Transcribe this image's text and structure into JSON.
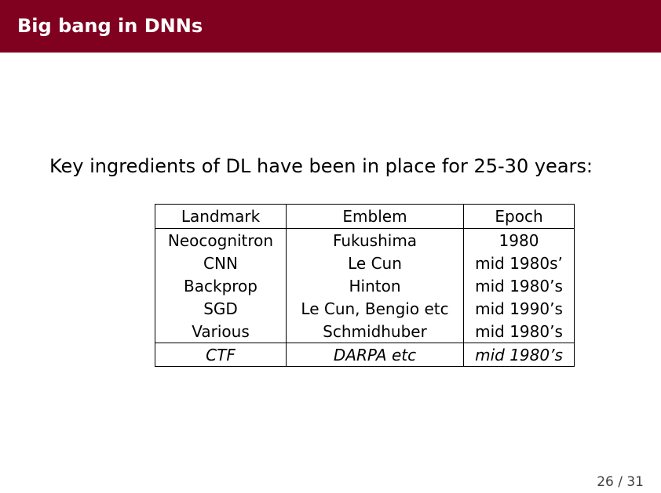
{
  "slide": {
    "title": "Big bang in DNNs",
    "intro": "Key ingredients of DL have been in place for 25-30 years:"
  },
  "table": {
    "headers": [
      "Landmark",
      "Emblem",
      "Epoch"
    ],
    "rows": [
      [
        "Neocognitron",
        "Fukushima",
        "1980"
      ],
      [
        "CNN",
        "Le Cun",
        "mid 1980s’"
      ],
      [
        "Backprop",
        "Hinton",
        "mid 1980’s"
      ],
      [
        "SGD",
        "Le Cun, Bengio etc",
        "mid 1990’s"
      ],
      [
        "Various",
        "Schmidhuber",
        "mid 1980’s"
      ],
      [
        "CTF",
        "DARPA etc",
        "mid 1980’s"
      ]
    ]
  },
  "footer": {
    "page": "26 / 31"
  },
  "colors": {
    "title_bar": "#800020",
    "title_text": "#ffffff"
  }
}
